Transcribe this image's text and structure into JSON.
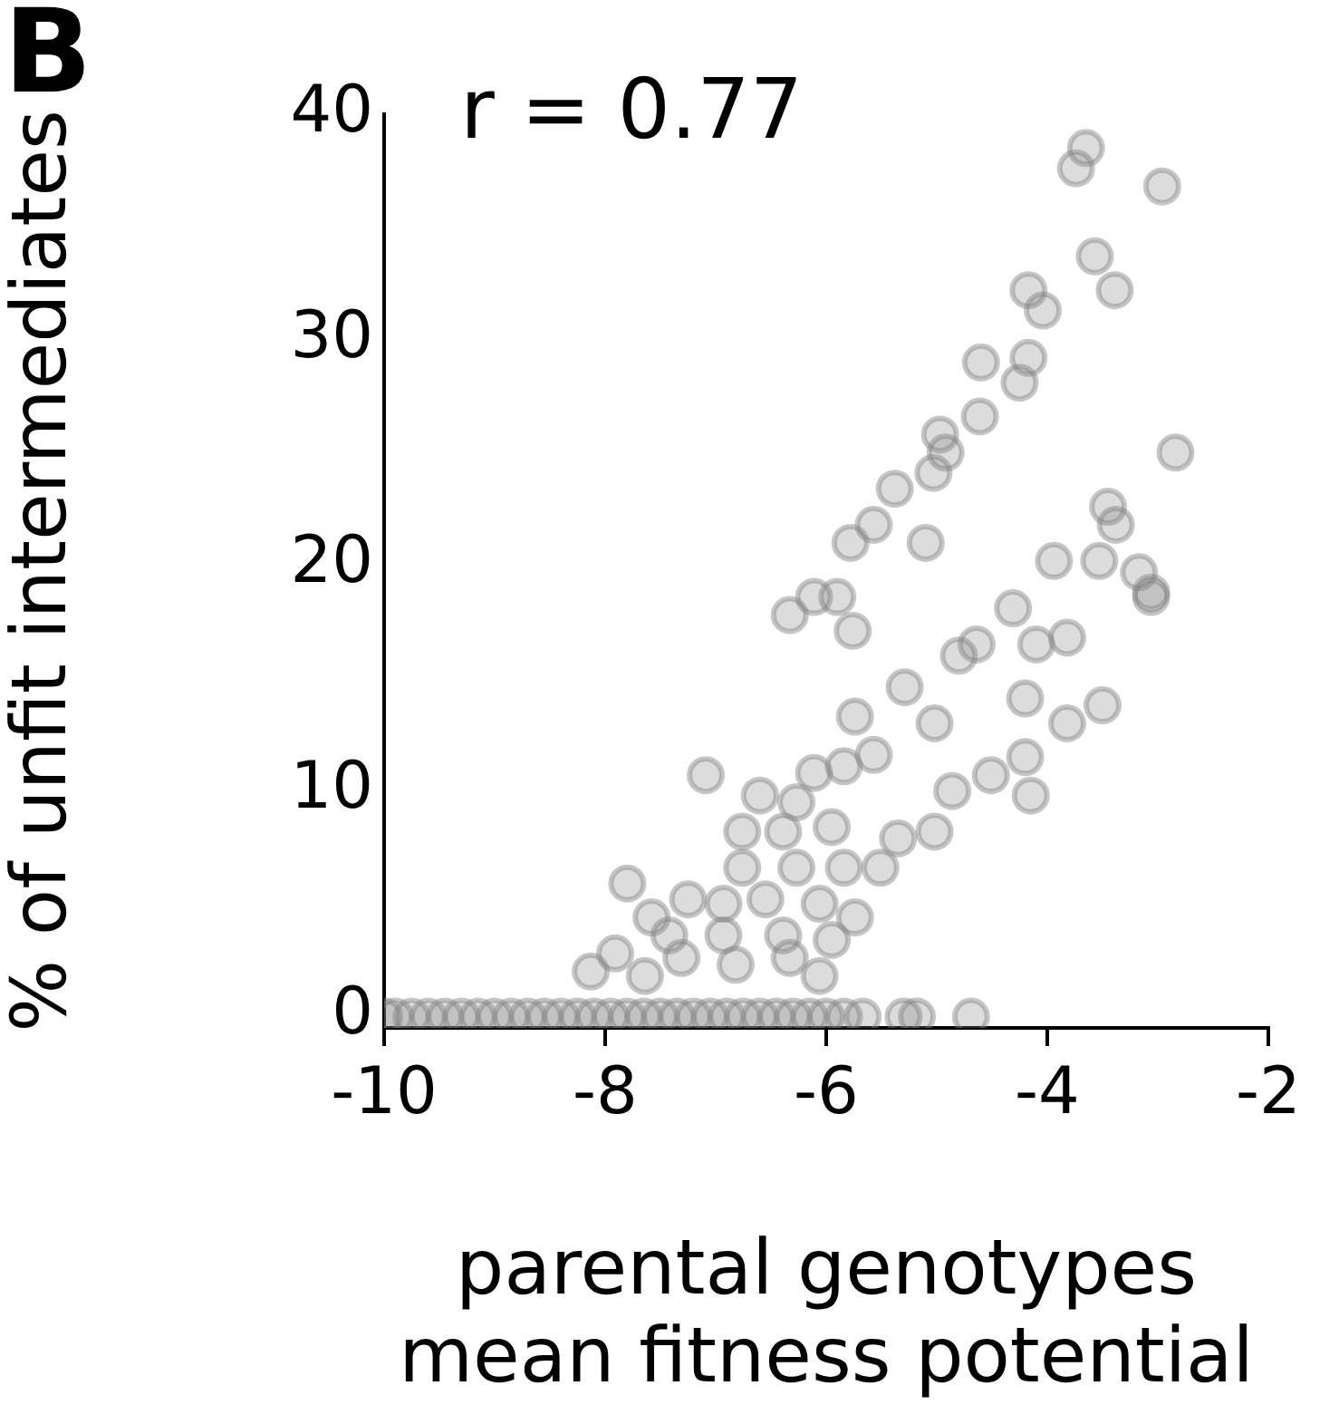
{
  "chart_data": {
    "type": "scatter",
    "xlabel": "parental genotypes\nmean fitness potential",
    "ylabel": "% of unfit intermediates",
    "annotations": [
      "B",
      "r = 0.77"
    ],
    "xlim": [
      -10,
      -2
    ],
    "xticks": [
      -10,
      -8,
      -6,
      -4,
      -2
    ],
    "ylim": [
      -0.5,
      40
    ],
    "yticks": [
      0,
      10,
      20,
      30,
      40
    ],
    "grid": false,
    "legend": false,
    "marker": "circle",
    "series": [
      {
        "color": "#808080",
        "x": [
          -3.65,
          -3.74,
          -2.96,
          -3.57,
          -3.39,
          -4.17,
          -4.04,
          -4.6,
          -4.17,
          -4.25,
          -4.61,
          -4.92,
          -4.97,
          -5.03,
          -5.38,
          -5.57,
          -5.78,
          -5.1,
          -5.9,
          -6.11,
          -5.76,
          -2.84,
          -3.45,
          -3.53,
          -3.94,
          -3.06,
          -3.17,
          -3.38,
          -4.31,
          -6.33,
          -3.06,
          -4.1,
          -3.82,
          -3.5,
          -3.82,
          -4.2,
          -4.64,
          -4.8,
          -5.02,
          -5.29,
          -5.74,
          -4.2,
          -4.15,
          -4.51,
          -4.86,
          -5.02,
          -5.35,
          -7.09,
          -6.11,
          -5.84,
          -5.57,
          -6.27,
          -6.6,
          -6.76,
          -6.39,
          -5.95,
          -5.51,
          -5.84,
          -6.27,
          -6.76,
          -7.8,
          -7.25,
          -6.93,
          -6.55,
          -6.06,
          -5.74,
          -7.58,
          -7.42,
          -6.93,
          -6.39,
          -5.95,
          -7.91,
          -7.31,
          -6.82,
          -6.33,
          -8.13,
          -7.64,
          -6.06,
          -10,
          -9.9,
          -9.75,
          -9.6,
          -9.45,
          -9.3,
          -9.15,
          -9,
          -8.85,
          -8.7,
          -8.55,
          -8.4,
          -8.25,
          -8.1,
          -7.95,
          -7.8,
          -7.65,
          -7.5,
          -7.35,
          -7.2,
          -7.05,
          -6.9,
          -6.75,
          -6.6,
          -6.45,
          -6.3,
          -6.15,
          -6,
          -5.84,
          -5.67,
          -5.3,
          -5.18,
          -4.69
        ],
        "values": [
          38.5,
          37.6,
          36.8,
          33.7,
          32.2,
          32.2,
          31.3,
          29,
          29.2,
          28.1,
          26.6,
          25,
          25.8,
          24.1,
          23.4,
          21.8,
          21,
          21,
          18.6,
          18.6,
          17.1,
          25,
          22.6,
          20.2,
          20.2,
          18.8,
          19.7,
          21.8,
          18.1,
          17.8,
          18.6,
          16.5,
          16.8,
          13.8,
          13,
          14.1,
          16.5,
          16,
          13,
          14.6,
          13.3,
          11.5,
          9.8,
          10.7,
          10,
          8.2,
          7.9,
          10.7,
          10.8,
          11.1,
          11.6,
          9.5,
          9.8,
          8.2,
          8.2,
          8.4,
          6.6,
          6.6,
          6.6,
          6.6,
          5.9,
          5.2,
          5,
          5.2,
          5,
          4.4,
          4.4,
          3.6,
          3.6,
          3.6,
          3.4,
          2.8,
          2.6,
          2.3,
          2.6,
          2,
          1.8,
          1.8,
          0,
          0,
          0,
          0,
          0,
          0,
          0,
          0,
          0,
          0,
          0,
          0,
          0,
          0,
          0,
          0,
          0,
          0,
          0,
          0,
          0,
          0,
          0,
          0,
          0,
          0,
          0,
          0,
          0,
          0,
          0,
          0,
          0
        ]
      }
    ]
  }
}
